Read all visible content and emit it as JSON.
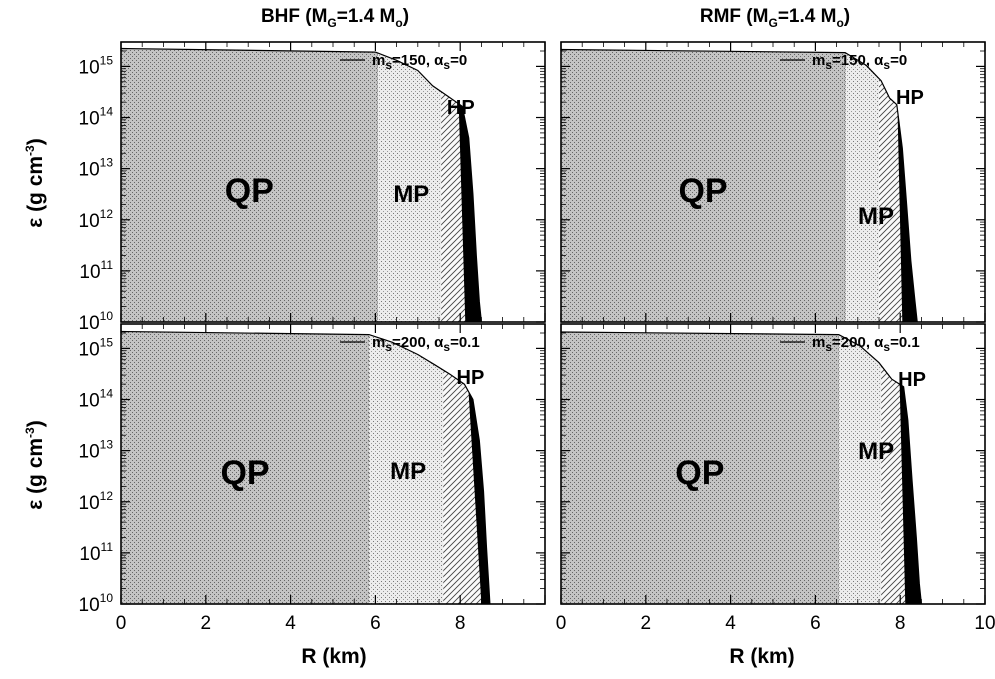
{
  "chart_data": {
    "type": "area",
    "columns": [
      {
        "title": "BHF (M",
        "sub": "G",
        "mid": "=1.4 M",
        "sub2": "o",
        "end": ")"
      },
      {
        "title": "RMF (M",
        "sub": "G",
        "mid": "=1.4 M",
        "sub2": "o",
        "end": ")"
      }
    ],
    "xlabel": "R (km)",
    "ylabel_main": "ε (g cm",
    "ylabel_sup": "-3",
    "ylabel_end": ")",
    "y_scale": "log",
    "ylim": [
      10000000000.0,
      3000000000000000.0
    ],
    "y_ticks": [
      {
        "base": "10",
        "exp": "10",
        "v": 10
      },
      {
        "base": "10",
        "exp": "11",
        "v": 11
      },
      {
        "base": "10",
        "exp": "12",
        "v": 12
      },
      {
        "base": "10",
        "exp": "13",
        "v": 13
      },
      {
        "base": "10",
        "exp": "14",
        "v": 14
      },
      {
        "base": "10",
        "exp": "15",
        "v": 15
      }
    ],
    "x_ticks_left": [
      "0",
      "2",
      "4",
      "6",
      "8"
    ],
    "x_ticks_right": [
      "0",
      "2",
      "4",
      "6",
      "8",
      "10"
    ],
    "panels": [
      {
        "name": "BHF top",
        "legend": {
          "m": "m",
          "msub": "s",
          "mval": "=150, ",
          "a": "α",
          "asub": "s",
          "aval": "=0"
        },
        "xlim": [
          0,
          10
        ],
        "profile": [
          [
            0,
            15.35
          ],
          [
            6.0,
            15.28
          ],
          [
            6.5,
            15.12
          ],
          [
            7.0,
            14.92
          ],
          [
            7.35,
            14.62
          ],
          [
            7.7,
            14.42
          ],
          [
            8.05,
            14.22
          ],
          [
            8.2,
            13.6
          ],
          [
            8.3,
            12.5
          ],
          [
            8.38,
            11.3
          ],
          [
            8.45,
            10.4
          ],
          [
            8.5,
            10
          ]
        ],
        "boundaries": {
          "mp": 6.05,
          "hp": 7.55,
          "crust_top": 7.92,
          "crust_bot": 8.12,
          "surface": 8.5
        },
        "labels": {
          "qp": "QP",
          "mp": "MP",
          "hp": "HP"
        }
      },
      {
        "name": "RMF top",
        "legend": {
          "m": "m",
          "msub": "s",
          "mval": "=150, ",
          "a": "α",
          "asub": "s",
          "aval": "=0"
        },
        "xlim": [
          0,
          10
        ],
        "profile": [
          [
            0,
            15.33
          ],
          [
            6.7,
            15.27
          ],
          [
            7.2,
            15.02
          ],
          [
            7.55,
            14.72
          ],
          [
            7.75,
            14.38
          ],
          [
            7.92,
            14.25
          ],
          [
            8.05,
            13.4
          ],
          [
            8.15,
            12.3
          ],
          [
            8.25,
            11.2
          ],
          [
            8.35,
            10.4
          ],
          [
            8.4,
            10
          ]
        ],
        "boundaries": {
          "mp": 6.7,
          "hp": 7.5,
          "crust_top": 7.9,
          "crust_bot": 8.05,
          "surface": 8.4
        },
        "labels": {
          "qp": "QP",
          "mp": "MP",
          "hp": "HP"
        }
      },
      {
        "name": "BHF bottom",
        "legend": {
          "m": "m",
          "msub": "s",
          "mval": "=200, ",
          "a": "α",
          "asub": "s",
          "aval": "=0.1"
        },
        "xlim": [
          0,
          10
        ],
        "profile": [
          [
            0,
            15.33
          ],
          [
            5.85,
            15.27
          ],
          [
            6.4,
            15.12
          ],
          [
            7.0,
            14.88
          ],
          [
            7.4,
            14.68
          ],
          [
            7.75,
            14.5
          ],
          [
            8.1,
            14.3
          ],
          [
            8.3,
            14.0
          ],
          [
            8.45,
            13.2
          ],
          [
            8.55,
            12.2
          ],
          [
            8.62,
            11.1
          ],
          [
            8.68,
            10.3
          ],
          [
            8.7,
            10
          ]
        ],
        "boundaries": {
          "mp": 5.85,
          "hp": 7.6,
          "crust_top": 8.1,
          "crust_bot": 8.5,
          "surface": 8.7
        },
        "labels": {
          "qp": "QP",
          "mp": "MP",
          "hp": "HP"
        }
      },
      {
        "name": "RMF bottom",
        "legend": {
          "m": "m",
          "msub": "s",
          "mval": "=200, ",
          "a": "α",
          "asub": "s",
          "aval": "=0.1"
        },
        "xlim": [
          0,
          10
        ],
        "profile": [
          [
            0,
            15.32
          ],
          [
            6.55,
            15.27
          ],
          [
            7.05,
            15.05
          ],
          [
            7.5,
            14.72
          ],
          [
            7.8,
            14.4
          ],
          [
            8.08,
            14.25
          ],
          [
            8.18,
            13.6
          ],
          [
            8.28,
            12.4
          ],
          [
            8.38,
            11.3
          ],
          [
            8.45,
            10.4
          ],
          [
            8.5,
            10
          ]
        ],
        "boundaries": {
          "mp": 6.55,
          "hp": 7.55,
          "crust_top": 7.95,
          "crust_bot": 8.12,
          "surface": 8.5
        },
        "labels": {
          "qp": "QP",
          "mp": "MP",
          "hp": "HP"
        }
      }
    ]
  }
}
